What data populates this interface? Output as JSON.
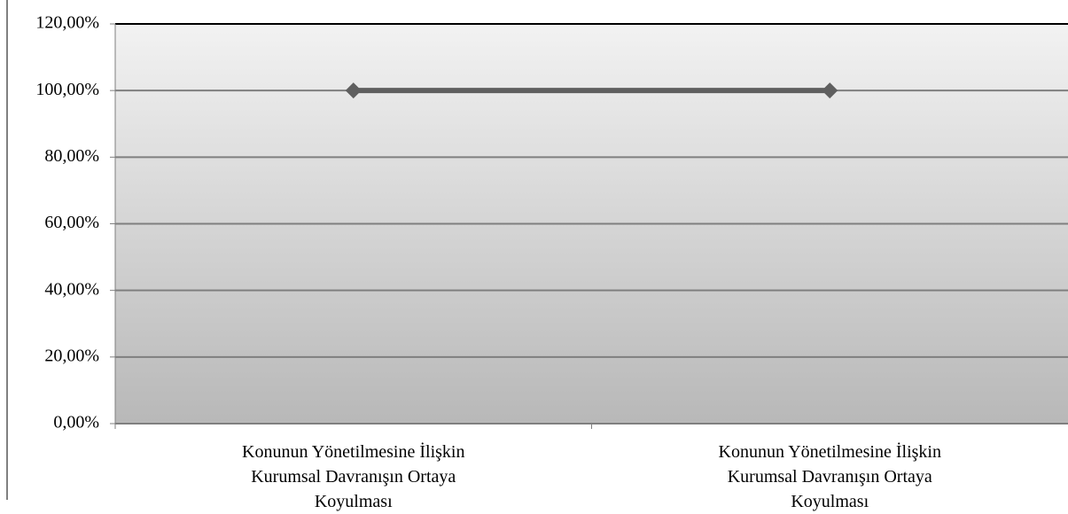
{
  "chart_data": {
    "type": "line",
    "categories": [
      "Konunun Yönetilmesine İlişkin Kurumsal Davranışın Ortaya Koyulması",
      "Konunun Yönetilmesine İlişkin Kurumsal Davranışın Ortaya Koyulması"
    ],
    "values": [
      100,
      100
    ],
    "color": "#5f5f5f",
    "ylim": [
      0,
      120
    ],
    "yticks": [
      {
        "value": 0,
        "label": "0,00%"
      },
      {
        "value": 20,
        "label": "20,00%"
      },
      {
        "value": 40,
        "label": "40,00%"
      },
      {
        "value": 60,
        "label": "60,00%"
      },
      {
        "value": 80,
        "label": "80,00%"
      },
      {
        "value": 100,
        "label": "100,00%"
      },
      {
        "value": 120,
        "label": "120,00%"
      }
    ],
    "grid": true
  }
}
